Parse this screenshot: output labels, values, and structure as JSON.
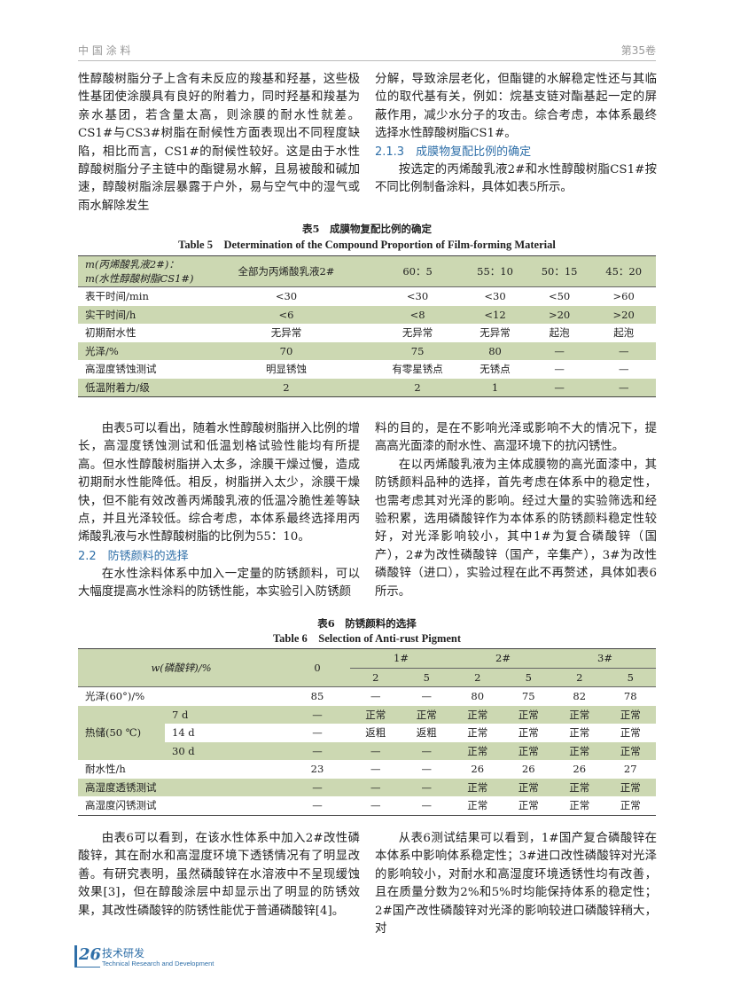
{
  "header": {
    "journal": "中 国 涂 料",
    "volume": "第35卷"
  },
  "top": {
    "left": "性醇酸树脂分子上含有未反应的羧基和羟基，这些极性基团使涂膜具有良好的附着力，同时羟基和羧基为亲水基团，若含量太高，则涂膜的耐水性就差。CS1#与CS3#树脂在耐候性方面表现出不同程度缺陷，相比而言，CS1#的耐候性较好。这是由于水性醇酸树脂分子主链中的酯键易水解，且易被酸和碱加速，醇酸树脂涂层暴露于户外，易与空气中的湿气或雨水解除发生",
    "right": "分解，导致涂层老化，但酯键的水解稳定性还与其临位的取代基有关，例如：烷基支链对酯基起一定的屏蔽作用，减少水分子的攻击。综合考虑，本体系最终选择水性醇酸树脂CS1#。",
    "heading": "2.1.3　成膜物复配比例的确定",
    "para": "按选定的丙烯酸乳液2#和水性醇酸树脂CS1#按不同比例制备涂料，具体如表5所示。"
  },
  "table5": {
    "caption_cn": "表5　成膜物复配比例的确定",
    "caption_en": "Table 5　Determination of the Compound Proportion of Film-forming Material",
    "header": [
      "m(丙烯酸乳液2#)：m(水性醇酸树脂CS1#)",
      "全部为丙烯酸乳液2#",
      "60：5",
      "55：10",
      "50：15",
      "45：20"
    ],
    "rows": [
      [
        "表干时间/min",
        "<30",
        "<30",
        "<30",
        "<50",
        ">60"
      ],
      [
        "实干时间/h",
        "<6",
        "<8",
        "<12",
        ">20",
        ">20"
      ],
      [
        "初期耐水性",
        "无异常",
        "无异常",
        "无异常",
        "起泡",
        "起泡"
      ],
      [
        "光泽/%",
        "70",
        "75",
        "80",
        "—",
        "—"
      ],
      [
        "高湿度锈蚀测试",
        "明显锈蚀",
        "有零星锈点",
        "无锈点",
        "—",
        "—"
      ],
      [
        "低温附着力/级",
        "2",
        "2",
        "1",
        "—",
        "—"
      ]
    ]
  },
  "middle": {
    "left": "由表5可以看出，随着水性醇酸树脂拼入比例的增长，高湿度锈蚀测试和低温划格试验性能均有所提高。但水性醇酸树脂拼入太多，涂膜干燥过慢，造成初期耐水性能降低。相反，树脂拼入太少，涂膜干燥快，但不能有效改善丙烯酸乳液的低温冷脆性差等缺点，并且光泽较低。综合考虑，本体系最终选择用丙烯酸乳液与水性醇酸树脂的比例为55：10。",
    "heading": "2.2　防锈颜料的选择",
    "left2": "在水性涂料体系中加入一定量的防锈颜料，可以大幅度提高水性涂料的防锈性能，本实验引入防锈颜",
    "right": "料的目的，是在不影响光泽或影响不大的情况下，提高高光面漆的耐水性、高湿环境下的抗闪锈性。",
    "right2": "在以丙烯酸乳液为主体成膜物的高光面漆中，其防锈颜料品种的选择，首先考虑在体系中的稳定性，也需考虑其对光泽的影响。经过大量的实验筛选和经验积累，选用磷酸锌作为本体系的防锈颜料稳定性较好，对光泽影响较小，其中1#为复合磷酸锌（国产），2#为改性磷酸锌（国产，辛集产），3#为改性磷酸锌（进口），实验过程在此不再赘述，具体如表6所示。"
  },
  "table6": {
    "caption_cn": "表6　防锈颜料的选择",
    "caption_en": "Table 6　Selection of Anti-rust Pigment",
    "header": {
      "label": "w(磷酸锌)/%",
      "zero": "0",
      "groups": [
        "1#",
        "2#",
        "3#"
      ],
      "levels": [
        "2",
        "5",
        "2",
        "5",
        "2",
        "5"
      ]
    },
    "rows": [
      {
        "label": "光泽(60°)/%",
        "cells": [
          "85",
          "—",
          "—",
          "80",
          "75",
          "82",
          "78"
        ]
      },
      {
        "label": "热储(50 ℃)",
        "sub": [
          {
            "label": "7 d",
            "cells": [
              "—",
              "正常",
              "正常",
              "正常",
              "正常",
              "正常",
              "正常"
            ]
          },
          {
            "label": "14 d",
            "cells": [
              "—",
              "返粗",
              "返粗",
              "正常",
              "正常",
              "正常",
              "正常"
            ]
          },
          {
            "label": "30 d",
            "cells": [
              "—",
              "—",
              "—",
              "正常",
              "正常",
              "正常",
              "正常"
            ]
          }
        ]
      },
      {
        "label": "耐水性/h",
        "cells": [
          "23",
          "—",
          "—",
          "26",
          "26",
          "26",
          "27"
        ]
      },
      {
        "label": "高湿度透锈测试",
        "cells": [
          "—",
          "—",
          "—",
          "正常",
          "正常",
          "正常",
          "正常"
        ]
      },
      {
        "label": "高湿度闪锈测试",
        "cells": [
          "—",
          "—",
          "—",
          "正常",
          "正常",
          "正常",
          "正常"
        ]
      }
    ]
  },
  "bottom": {
    "left": "由表6可以看到，在该水性体系中加入2#改性磷酸锌，其在耐水和高湿度环境下透锈情况有了明显改善。有研究表明，虽然磷酸锌在水溶液中不呈现缓蚀效果[3]，但在醇酸涂层中却显示出了明显的防锈效果，其改性磷酸锌的防锈性能优于普通磷酸锌[4]。",
    "right": "从表6测试结果可以看到，1#国产复合磷酸锌在本体系中影响体系稳定性；3#进口改性磷酸锌对光泽的影响较小，对耐水和高湿度环境透锈性均有改善，且在质量分数为2%和5%时均能保持体系的稳定性；2#国产改性磷酸锌对光泽的影响较进口磷酸锌稍大，对"
  },
  "footer": {
    "page": "26",
    "section": "技术研发",
    "section_en": "Technical Research and Development"
  }
}
